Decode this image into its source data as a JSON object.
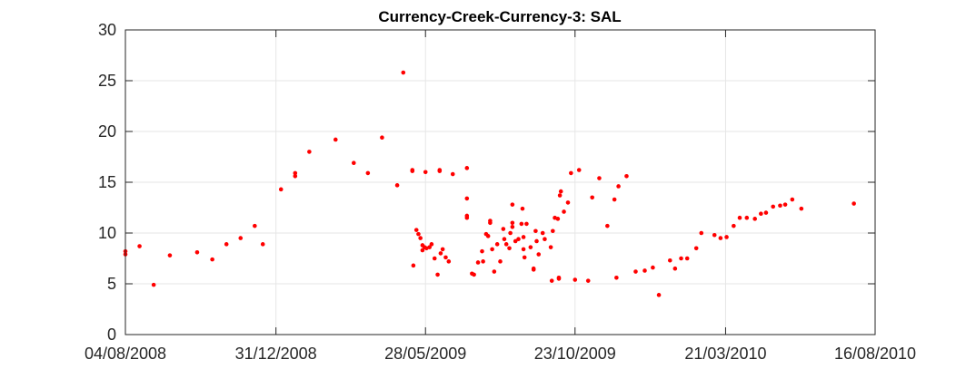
{
  "chart_data": {
    "type": "scatter",
    "title": "Currency-Creek-Currency-3: SAL",
    "xlabel": "",
    "ylabel": "",
    "x_axis_type": "date",
    "xlim": [
      "2008-08-04",
      "2010-08-16"
    ],
    "ylim": [
      0,
      30
    ],
    "x_ticks": [
      "2008-08-04",
      "2008-12-31",
      "2009-05-28",
      "2009-10-23",
      "2010-03-21",
      "2010-08-16"
    ],
    "x_tick_labels": [
      "04/08/2008",
      "31/12/2008",
      "28/05/2009",
      "23/10/2009",
      "21/03/2010",
      "16/08/2010"
    ],
    "y_ticks": [
      0,
      5,
      10,
      15,
      20,
      25,
      30
    ],
    "y_tick_labels": [
      "0",
      "5",
      "10",
      "15",
      "20",
      "25",
      "30"
    ],
    "grid": true,
    "legend": "none",
    "colors": {
      "marker": "#ff0000",
      "grid": "#e6e6e6",
      "axis": "#262626"
    },
    "series": [
      {
        "points": [
          [
            "2008-08-04",
            8.2
          ],
          [
            "2008-08-04",
            7.9
          ],
          [
            "2008-08-18",
            8.7
          ],
          [
            "2008-09-01",
            4.9
          ],
          [
            "2008-09-17",
            7.8
          ],
          [
            "2008-10-14",
            8.1
          ],
          [
            "2008-10-29",
            7.4
          ],
          [
            "2008-11-12",
            8.9
          ],
          [
            "2008-11-26",
            9.5
          ],
          [
            "2008-12-10",
            10.7
          ],
          [
            "2008-12-18",
            8.9
          ],
          [
            "2009-01-05",
            14.3
          ],
          [
            "2009-01-19",
            15.6
          ],
          [
            "2009-01-19",
            15.9
          ],
          [
            "2009-02-02",
            18.0
          ],
          [
            "2009-02-28",
            19.2
          ],
          [
            "2009-03-18",
            16.9
          ],
          [
            "2009-04-01",
            15.9
          ],
          [
            "2009-04-15",
            19.4
          ],
          [
            "2009-04-30",
            14.7
          ],
          [
            "2009-05-06",
            25.8
          ],
          [
            "2009-05-15",
            16.1
          ],
          [
            "2009-05-15",
            16.2
          ],
          [
            "2009-05-28",
            16.0
          ],
          [
            "2009-06-11",
            16.1
          ],
          [
            "2009-06-11",
            16.2
          ],
          [
            "2009-06-24",
            15.8
          ],
          [
            "2009-07-08",
            16.4
          ],
          [
            "2009-07-08",
            13.4
          ],
          [
            "2009-07-08",
            11.7
          ],
          [
            "2009-07-08",
            11.5
          ],
          [
            "2009-05-16",
            6.8
          ],
          [
            "2009-05-19",
            10.3
          ],
          [
            "2009-05-21",
            9.9
          ],
          [
            "2009-05-23",
            9.5
          ],
          [
            "2009-05-25",
            8.8
          ],
          [
            "2009-05-25",
            8.3
          ],
          [
            "2009-05-27",
            8.6
          ],
          [
            "2009-05-29",
            8.5
          ],
          [
            "2009-06-01",
            8.6
          ],
          [
            "2009-06-03",
            8.9
          ],
          [
            "2009-06-06",
            7.5
          ],
          [
            "2009-06-09",
            5.9
          ],
          [
            "2009-06-12",
            8.0
          ],
          [
            "2009-06-14",
            8.4
          ],
          [
            "2009-06-17",
            7.6
          ],
          [
            "2009-06-20",
            7.2
          ],
          [
            "2009-07-13",
            6.0
          ],
          [
            "2009-07-15",
            5.9
          ],
          [
            "2009-07-19",
            7.1
          ],
          [
            "2009-07-23",
            8.2
          ],
          [
            "2009-07-24",
            7.2
          ],
          [
            "2009-07-27",
            9.9
          ],
          [
            "2009-07-29",
            9.7
          ],
          [
            "2009-07-31",
            11.2
          ],
          [
            "2009-07-31",
            11.0
          ],
          [
            "2009-08-02",
            8.4
          ],
          [
            "2009-08-04",
            6.2
          ],
          [
            "2009-08-07",
            8.9
          ],
          [
            "2009-08-10",
            7.2
          ],
          [
            "2009-08-13",
            10.4
          ],
          [
            "2009-08-14",
            9.4
          ],
          [
            "2009-08-16",
            8.9
          ],
          [
            "2009-08-19",
            8.5
          ],
          [
            "2009-08-20",
            10.0
          ],
          [
            "2009-08-22",
            12.8
          ],
          [
            "2009-08-22",
            11.0
          ],
          [
            "2009-08-22",
            10.6
          ],
          [
            "2009-08-25",
            9.2
          ],
          [
            "2009-08-28",
            9.4
          ],
          [
            "2009-08-31",
            10.9
          ],
          [
            "2009-09-01",
            12.4
          ],
          [
            "2009-09-02",
            9.6
          ],
          [
            "2009-09-02",
            8.4
          ],
          [
            "2009-09-03",
            7.6
          ],
          [
            "2009-09-05",
            10.9
          ],
          [
            "2009-09-09",
            8.6
          ],
          [
            "2009-09-12",
            6.5
          ],
          [
            "2009-09-12",
            6.4
          ],
          [
            "2009-09-14",
            10.2
          ],
          [
            "2009-09-15",
            9.2
          ],
          [
            "2009-09-17",
            7.9
          ],
          [
            "2009-09-21",
            10.0
          ],
          [
            "2009-09-23",
            9.4
          ],
          [
            "2009-09-29",
            8.6
          ],
          [
            "2009-10-01",
            10.2
          ],
          [
            "2009-10-03",
            11.5
          ],
          [
            "2009-10-06",
            11.4
          ],
          [
            "2009-09-30",
            5.3
          ],
          [
            "2009-10-07",
            5.5
          ],
          [
            "2009-10-07",
            5.6
          ],
          [
            "2009-10-08",
            13.7
          ],
          [
            "2009-10-09",
            14.1
          ],
          [
            "2009-10-12",
            12.1
          ],
          [
            "2009-10-16",
            13.0
          ],
          [
            "2009-10-19",
            15.9
          ],
          [
            "2009-10-23",
            5.4
          ],
          [
            "2009-10-27",
            16.2
          ],
          [
            "2009-11-05",
            5.3
          ],
          [
            "2009-11-09",
            13.5
          ],
          [
            "2009-11-16",
            15.4
          ],
          [
            "2009-11-24",
            10.7
          ],
          [
            "2009-12-01",
            13.3
          ],
          [
            "2009-12-03",
            5.6
          ],
          [
            "2009-12-05",
            14.6
          ],
          [
            "2009-12-13",
            15.6
          ],
          [
            "2009-12-22",
            6.2
          ],
          [
            "2009-12-31",
            6.3
          ],
          [
            "2010-01-08",
            6.6
          ],
          [
            "2010-01-14",
            3.9
          ],
          [
            "2010-01-25",
            7.3
          ],
          [
            "2010-01-30",
            6.5
          ],
          [
            "2010-02-05",
            7.5
          ],
          [
            "2010-02-11",
            7.5
          ],
          [
            "2010-02-20",
            8.5
          ],
          [
            "2010-02-25",
            10.0
          ],
          [
            "2010-03-10",
            9.8
          ],
          [
            "2010-03-16",
            9.5
          ],
          [
            "2010-03-22",
            9.6
          ],
          [
            "2010-03-29",
            10.7
          ],
          [
            "2010-04-04",
            11.5
          ],
          [
            "2010-04-11",
            11.5
          ],
          [
            "2010-04-19",
            11.4
          ],
          [
            "2010-04-25",
            11.9
          ],
          [
            "2010-04-30",
            12.0
          ],
          [
            "2010-05-07",
            12.6
          ],
          [
            "2010-05-14",
            12.7
          ],
          [
            "2010-05-19",
            12.8
          ],
          [
            "2010-05-26",
            13.3
          ],
          [
            "2010-06-04",
            12.4
          ],
          [
            "2010-07-26",
            12.9
          ]
        ]
      }
    ]
  }
}
